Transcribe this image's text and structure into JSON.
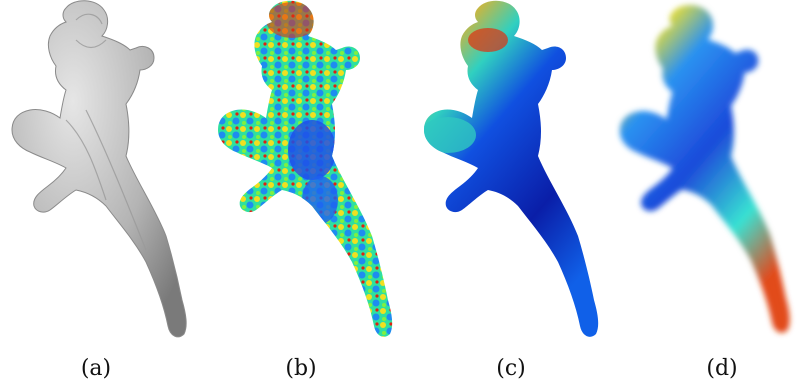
{
  "panels": [
    {
      "id": "a",
      "caption": "(a)",
      "rendering": "grey-shaded-mesh"
    },
    {
      "id": "b",
      "caption": "(b)",
      "rendering": "jet-colormap-fine-texture"
    },
    {
      "id": "c",
      "caption": "(c)",
      "rendering": "jet-colormap-smooth-lit"
    },
    {
      "id": "d",
      "caption": "(d)",
      "rendering": "jet-colormap-blurred"
    }
  ],
  "colormap": {
    "low": "#0a1ea8",
    "mid_low": "#1e8cf0",
    "mid": "#2ee0d0",
    "mid_high": "#f0e020",
    "high": "#e02010"
  },
  "mesh_grey": "#b8b8b8"
}
